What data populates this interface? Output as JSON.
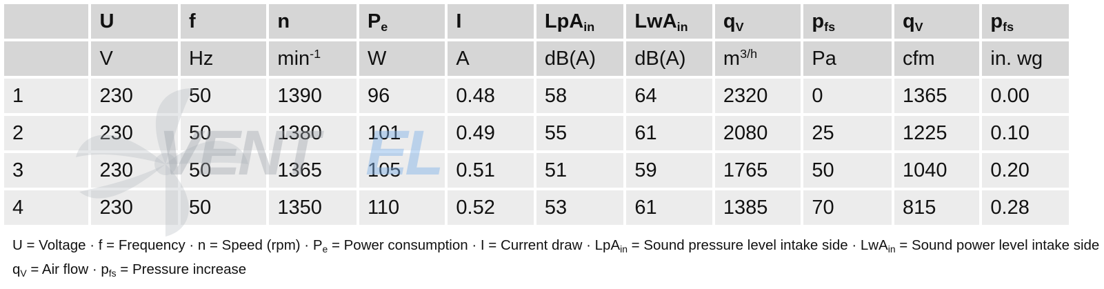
{
  "watermark": {
    "text_a": "VENT",
    "text_b": "EL"
  },
  "table": {
    "header": [
      "",
      "U",
      "f",
      "n",
      "P|e",
      "I",
      "LpA|in",
      "LwA|in",
      "q|V",
      "p|fs",
      "q|V",
      "p|fs"
    ],
    "units": [
      "",
      "V",
      "Hz",
      "min^-1",
      "W",
      "A",
      "dB(A)",
      "dB(A)",
      "m^3/h",
      "Pa",
      "cfm",
      "in. wg"
    ],
    "rows": [
      [
        "1",
        "230",
        "50",
        "1390",
        "96",
        "0.48",
        "58",
        "64",
        "2320",
        "0",
        "1365",
        "0.00"
      ],
      [
        "2",
        "230",
        "50",
        "1380",
        "101",
        "0.49",
        "55",
        "61",
        "2080",
        "25",
        "1225",
        "0.10"
      ],
      [
        "3",
        "230",
        "50",
        "1365",
        "105",
        "0.51",
        "51",
        "59",
        "1765",
        "50",
        "1040",
        "0.20"
      ],
      [
        "4",
        "230",
        "50",
        "1350",
        "110",
        "0.52",
        "53",
        "61",
        "1385",
        "70",
        "815",
        "0.28"
      ]
    ]
  },
  "legend": {
    "line1": [
      {
        "t": "U = Voltage · f = Frequency · n = Speed (rpm) · P"
      },
      {
        "sub": "e"
      },
      {
        "t": " = Power consumption · I = Current draw · LpA"
      },
      {
        "sub": "in"
      },
      {
        "t": " = Sound pressure level intake side · LwA"
      },
      {
        "sub": "in"
      },
      {
        "t": " = Sound power level intake side"
      }
    ],
    "line2": [
      {
        "t": "q"
      },
      {
        "sub": "V"
      },
      {
        "t": " = Air flow · p"
      },
      {
        "sub": "fs"
      },
      {
        "t": " = Pressure increase"
      }
    ]
  }
}
